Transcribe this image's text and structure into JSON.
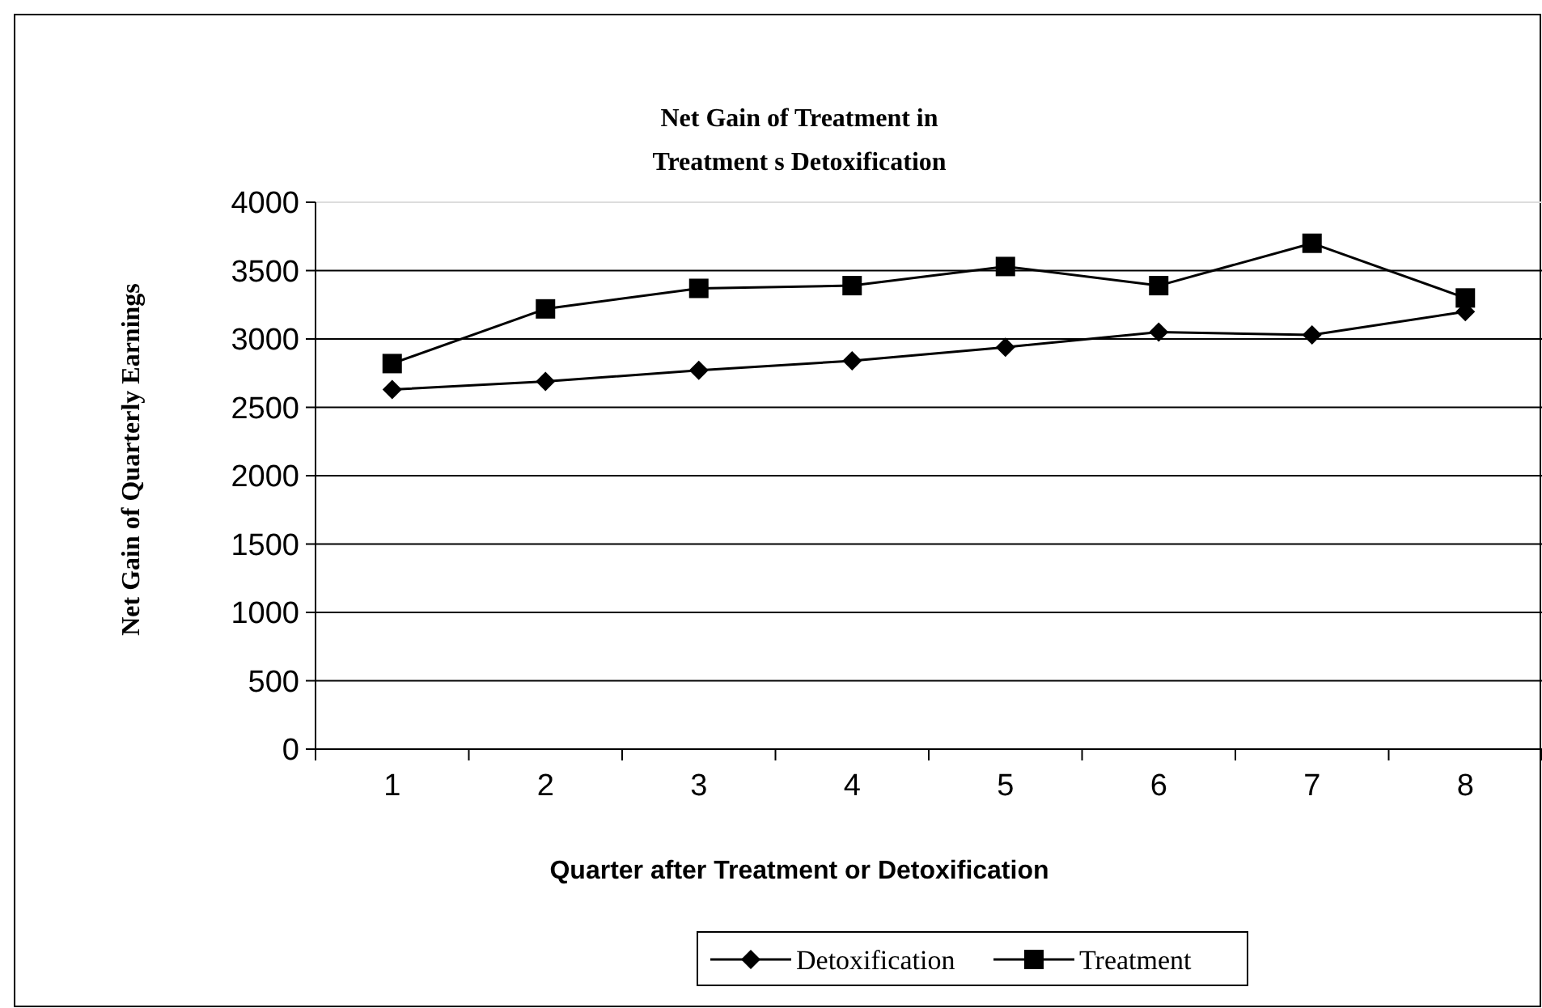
{
  "chart_data": {
    "type": "line",
    "title": "Net Gain of Treatment in\nTreatment s Detoxification",
    "xlabel": "Quarter after Treatment or Detoxification",
    "ylabel": "Net Gain of Quarterly Earnings",
    "categories": [
      "1",
      "2",
      "3",
      "4",
      "5",
      "6",
      "7",
      "8"
    ],
    "series": [
      {
        "name": "Detoxification",
        "color": "#000000",
        "marker": "diamond",
        "values": [
          2630,
          2690,
          2770,
          2840,
          2940,
          3050,
          3030,
          3200
        ]
      },
      {
        "name": "Treatment",
        "color": "#000000",
        "marker": "square",
        "values": [
          2820,
          3220,
          3370,
          3390,
          3530,
          3390,
          3700,
          3300
        ]
      }
    ],
    "ylim": [
      0,
      4000
    ],
    "yticks": [
      0,
      500,
      1000,
      1500,
      2000,
      2500,
      3000,
      3500,
      4000
    ],
    "grid": "y",
    "legend": "bottom",
    "line_style": "solid"
  }
}
